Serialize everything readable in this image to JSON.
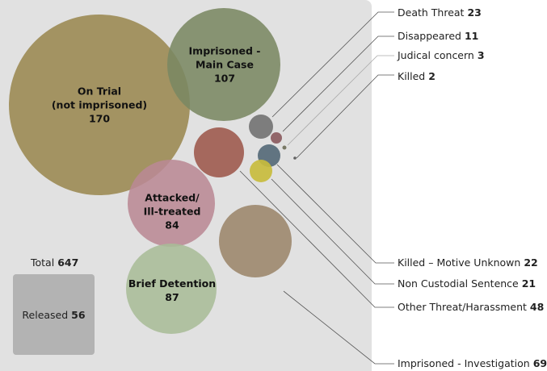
{
  "chart_data": {
    "type": "bubble",
    "total": {
      "label": "Total",
      "value": "647"
    },
    "series": [
      {
        "name": "On Trial (not imprisoned)",
        "line1": "On Trial",
        "line2": "(not imprisoned)",
        "value": "170",
        "color": "#9a8850"
      },
      {
        "name": "Imprisoned - Main Case",
        "line1": "Imprisoned -",
        "line2": "Main Case",
        "value": "107",
        "color": "#7a8762"
      },
      {
        "name": "Death Threat",
        "value": "23",
        "color": "#747474"
      },
      {
        "name": "Disappeared",
        "value": "11",
        "color": "#8b5b5f"
      },
      {
        "name": "Judical concern",
        "value": "3",
        "color": "#6f6f5a"
      },
      {
        "name": "Killed",
        "value": "2",
        "color": "#555555"
      },
      {
        "name": "Other Threat/Harassment",
        "value": "48",
        "color": "#a05d51"
      },
      {
        "name": "Killed – Motive Unknown",
        "value": "22",
        "color": "#566a78"
      },
      {
        "name": "Non Custodial Sentence",
        "value": "21",
        "color": "#c8bc3d"
      },
      {
        "name": "Attacked/ Ill-treated",
        "line1": "Attacked/",
        "line2": "Ill-treated",
        "value": "84",
        "color": "#b98994"
      },
      {
        "name": "Brief Detention",
        "line1": "Brief Detention",
        "value": "87",
        "color": "#a8bc97"
      },
      {
        "name": "Imprisoned - Investigation",
        "value": "69",
        "color": "#9e8a70"
      },
      {
        "name": "Released",
        "value": "56",
        "color": "#b3b3b3"
      }
    ]
  }
}
